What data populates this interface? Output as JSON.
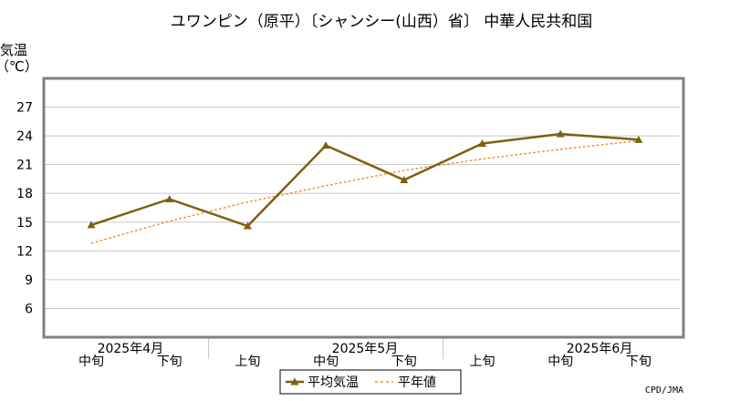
{
  "chart_data": {
    "type": "line",
    "title": "ユワンピン（原平）〔シャンシー(山西）省〕 中華人民共和国",
    "ylabel_line1": "気温",
    "ylabel_line2": "（℃）",
    "ylim": [
      3,
      30
    ],
    "yticks": [
      6,
      9,
      12,
      15,
      18,
      21,
      24,
      27
    ],
    "grid": true,
    "legend_position": "bottom-center",
    "credit": "CPD/JMA",
    "x_periods": [
      "中旬",
      "下旬",
      "上旬",
      "中旬",
      "下旬",
      "上旬",
      "中旬",
      "下旬"
    ],
    "x_months": [
      {
        "label": "2025年4月",
        "center_index": 0.5
      },
      {
        "label": "2025年5月",
        "center_index": 3.5
      },
      {
        "label": "2025年6月",
        "center_index": 6.5
      }
    ],
    "month_boundaries": [
      1.5,
      4.5
    ],
    "series": [
      {
        "name": "平均気温",
        "values": [
          14.7,
          17.4,
          14.6,
          23.0,
          19.4,
          23.2,
          24.2,
          23.6
        ],
        "color": "#7f5f10",
        "style": "solid",
        "marker": "triangle"
      },
      {
        "name": "平年値",
        "values": [
          12.8,
          15.1,
          17.1,
          18.8,
          20.4,
          21.6,
          22.6,
          23.5
        ],
        "color": "#f07d10",
        "style": "dotted"
      }
    ],
    "colors": {
      "plot_border": "#808080",
      "grid": "#c8c8c8"
    }
  }
}
